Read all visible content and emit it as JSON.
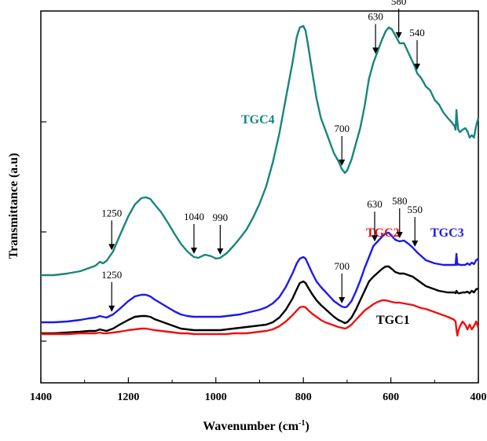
{
  "chart_data": {
    "type": "line",
    "xlabel": "Wavenumber (cm",
    "xlabel_sup": "-1",
    "xlabel_end": ")",
    "ylabel": "Transmittance (a.u)",
    "xlim": [
      1400,
      400
    ],
    "x_ticks": [
      1400,
      1200,
      1000,
      800,
      600,
      400
    ],
    "grid": false,
    "colors": {
      "TGC1": "#000000",
      "TGC2": "#ee1111",
      "TGC3": "#1a1aee",
      "TGC4": "#17857f"
    },
    "series": [
      {
        "name": "TGC4",
        "color": "#17857f",
        "x": [
          1400,
          1370,
          1340,
          1310,
          1290,
          1275,
          1265,
          1258,
          1250,
          1235,
          1220,
          1200,
          1185,
          1170,
          1160,
          1150,
          1140,
          1125,
          1110,
          1095,
          1080,
          1065,
          1050,
          1040,
          1025,
          1010,
          1000,
          990,
          975,
          960,
          945,
          930,
          915,
          900,
          885,
          870,
          855,
          840,
          825,
          815,
          808,
          800,
          795,
          790,
          780,
          770,
          760,
          750,
          740,
          730,
          720,
          712,
          705,
          700,
          690,
          680,
          670,
          660,
          650,
          640,
          630,
          620,
          612,
          605,
          598,
          590,
          580,
          570,
          560,
          550,
          545,
          540,
          530,
          520,
          510,
          500,
          490,
          480,
          470,
          462,
          455,
          452,
          450,
          448,
          446,
          442,
          436,
          430,
          425,
          420,
          415,
          410,
          405,
          400
        ],
        "y": [
          5,
          5,
          7,
          10,
          14,
          17,
          22,
          20,
          23,
          35,
          55,
          80,
          95,
          103,
          104,
          102,
          95,
          85,
          72,
          58,
          45,
          35,
          28,
          27,
          31,
          29,
          26,
          27,
          33,
          42,
          52,
          63,
          78,
          96,
          118,
          148,
          185,
          230,
          275,
          308,
          320,
          322,
          316,
          300,
          265,
          230,
          205,
          190,
          175,
          160,
          150,
          140,
          135,
          138,
          152,
          172,
          192,
          220,
          255,
          275,
          290,
          305,
          315,
          320,
          318,
          310,
          300,
          300,
          288,
          276,
          270,
          262,
          255,
          245,
          240,
          228,
          222,
          212,
          205,
          200,
          195,
          190,
          215,
          200,
          190,
          187,
          190,
          192,
          188,
          180,
          183,
          180,
          195,
          205
        ]
      },
      {
        "name": "TGC3",
        "color": "#1a1aee",
        "x": [
          1400,
          1370,
          1340,
          1310,
          1290,
          1275,
          1265,
          1258,
          1250,
          1235,
          1220,
          1200,
          1185,
          1170,
          1160,
          1150,
          1140,
          1125,
          1110,
          1095,
          1080,
          1065,
          1050,
          1040,
          1025,
          1010,
          1000,
          990,
          975,
          960,
          945,
          930,
          915,
          900,
          885,
          870,
          855,
          840,
          825,
          815,
          808,
          800,
          795,
          790,
          780,
          770,
          760,
          750,
          740,
          730,
          720,
          712,
          705,
          700,
          690,
          680,
          670,
          660,
          650,
          640,
          630,
          620,
          612,
          605,
          598,
          590,
          580,
          570,
          560,
          550,
          545,
          540,
          530,
          520,
          510,
          500,
          490,
          480,
          470,
          462,
          455,
          452,
          450,
          448,
          446,
          442,
          436,
          430,
          425,
          420,
          415,
          410,
          405,
          400
        ],
        "y": [
          3,
          3,
          4,
          6,
          8,
          9,
          11,
          10,
          9,
          13,
          20,
          30,
          36,
          38,
          38,
          36,
          32,
          27,
          22,
          17,
          13,
          11,
          10,
          10,
          10,
          10,
          10,
          10,
          11,
          12,
          13,
          15,
          17,
          19,
          22,
          27,
          35,
          48,
          65,
          78,
          84,
          86,
          84,
          78,
          66,
          55,
          48,
          42,
          36,
          30,
          26,
          23,
          22,
          23,
          30,
          42,
          56,
          72,
          86,
          100,
          106,
          112,
          116,
          117,
          113,
          108,
          106,
          107,
          103,
          98,
          95,
          92,
          87,
          82,
          80,
          78,
          77,
          76,
          76,
          76,
          76,
          76,
          90,
          76,
          77,
          76,
          76,
          76,
          78,
          76,
          79,
          77,
          82,
          84
        ]
      },
      {
        "name": "TGC1",
        "color": "#000000",
        "x": [
          1400,
          1370,
          1340,
          1310,
          1290,
          1275,
          1265,
          1258,
          1250,
          1235,
          1220,
          1200,
          1185,
          1170,
          1160,
          1150,
          1140,
          1125,
          1110,
          1095,
          1080,
          1065,
          1050,
          1040,
          1025,
          1010,
          1000,
          990,
          975,
          960,
          945,
          930,
          915,
          900,
          885,
          870,
          855,
          840,
          825,
          815,
          808,
          800,
          795,
          790,
          780,
          770,
          760,
          750,
          740,
          730,
          720,
          712,
          705,
          700,
          690,
          680,
          670,
          660,
          650,
          640,
          630,
          620,
          612,
          605,
          598,
          590,
          580,
          570,
          560,
          550,
          545,
          540,
          530,
          520,
          510,
          500,
          490,
          480,
          470,
          462,
          455,
          452,
          450,
          448,
          446,
          442,
          436,
          430,
          425,
          420,
          415,
          410,
          405,
          400
        ],
        "y": [
          4,
          4,
          5,
          6,
          7,
          7,
          9,
          8,
          7,
          10,
          15,
          21,
          25,
          26,
          26,
          25,
          22,
          19,
          16,
          13,
          10,
          9,
          8,
          8,
          8,
          8,
          8,
          8,
          9,
          10,
          11,
          12,
          13,
          14,
          15,
          18,
          24,
          34,
          48,
          60,
          68,
          70,
          68,
          63,
          54,
          46,
          40,
          35,
          30,
          25,
          21,
          19,
          17,
          18,
          24,
          34,
          46,
          58,
          70,
          76,
          81,
          86,
          89,
          89,
          86,
          82,
          80,
          80,
          78,
          76,
          74,
          72,
          68,
          64,
          62,
          60,
          58,
          57,
          56,
          56,
          56,
          55,
          58,
          56,
          55,
          55,
          56,
          56,
          57,
          55,
          58,
          56,
          60,
          61
        ]
      },
      {
        "name": "TGC2",
        "color": "#ee1111",
        "x": [
          1400,
          1370,
          1340,
          1310,
          1290,
          1275,
          1265,
          1258,
          1250,
          1235,
          1220,
          1200,
          1185,
          1170,
          1160,
          1150,
          1140,
          1125,
          1110,
          1095,
          1080,
          1065,
          1050,
          1040,
          1025,
          1010,
          1000,
          990,
          975,
          960,
          945,
          930,
          915,
          900,
          885,
          870,
          855,
          840,
          825,
          815,
          808,
          800,
          795,
          790,
          780,
          770,
          760,
          750,
          740,
          730,
          720,
          712,
          705,
          700,
          690,
          680,
          670,
          660,
          650,
          640,
          630,
          620,
          612,
          605,
          598,
          590,
          580,
          570,
          560,
          550,
          545,
          540,
          530,
          520,
          510,
          500,
          490,
          480,
          470,
          462,
          455,
          452,
          450,
          448,
          446,
          442,
          436,
          430,
          425,
          420,
          415,
          410,
          405,
          400
        ],
        "y": [
          6,
          6,
          6,
          7,
          7,
          7,
          8,
          7,
          7,
          8,
          9,
          11,
          12,
          13,
          13,
          12,
          11,
          10,
          9,
          8,
          7,
          7,
          6,
          6,
          6,
          6,
          6,
          6,
          6,
          7,
          7,
          7,
          8,
          9,
          10,
          12,
          16,
          22,
          30,
          36,
          40,
          41,
          40,
          37,
          32,
          28,
          24,
          21,
          19,
          17,
          15,
          14,
          13,
          14,
          18,
          24,
          30,
          36,
          40,
          44,
          47,
          49,
          49,
          48,
          47,
          46,
          46,
          45,
          44,
          43,
          42,
          41,
          39,
          38,
          36,
          34,
          32,
          30,
          28,
          26,
          24,
          22,
          12,
          4,
          10,
          16,
          22,
          18,
          12,
          18,
          12,
          16,
          22,
          14
        ]
      }
    ],
    "annotations": [
      {
        "text": "630",
        "series": "TGC4",
        "x": 635
      },
      {
        "text": "580",
        "series": "TGC4",
        "x": 582
      },
      {
        "text": "540",
        "series": "TGC4",
        "x": 540
      },
      {
        "text": "700",
        "series": "TGC4",
        "x": 712
      },
      {
        "text": "1250",
        "series": "TGC4",
        "x": 1238
      },
      {
        "text": "1040",
        "series": "TGC4",
        "x": 1050
      },
      {
        "text": "990",
        "series": "TGC4",
        "x": 990
      },
      {
        "text": "630",
        "series": "TGC3",
        "x": 637
      },
      {
        "text": "580",
        "series": "TGC3",
        "x": 580
      },
      {
        "text": "550",
        "series": "TGC3",
        "x": 545
      },
      {
        "text": "700",
        "series": "TGC3",
        "x": 712
      },
      {
        "text": "1250",
        "series": "TGC3",
        "x": 1238
      }
    ],
    "series_labels": [
      "TGC4",
      "TGC3",
      "TGC2",
      "TGC1"
    ]
  }
}
